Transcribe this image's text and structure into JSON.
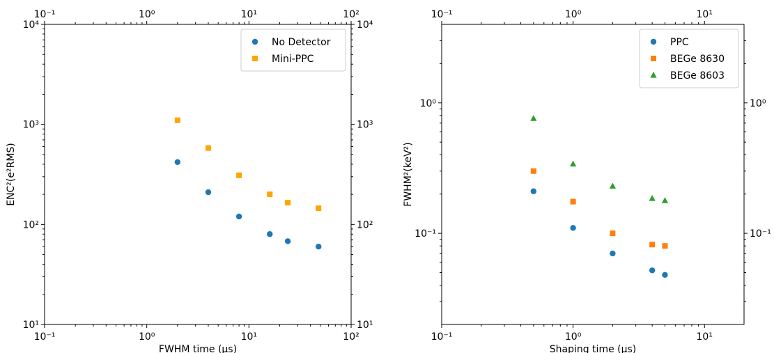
{
  "chart_data": [
    {
      "type": "scatter",
      "xlabel": "FWHM time (μs)",
      "ylabel": "ENC²(e²RMS)",
      "xscale": "log",
      "yscale": "log",
      "xlim": [
        0.1,
        100
      ],
      "ylim": [
        10,
        10000
      ],
      "grid": false,
      "legend_position": "top-right",
      "x_tick_labels": [
        "10⁻¹",
        "10⁰",
        "10¹",
        "10²"
      ],
      "y_tick_labels": [
        "10¹",
        "10²",
        "10³",
        "10⁴"
      ],
      "series": [
        {
          "name": "No Detector",
          "marker": "circle",
          "color": "#1f77b4",
          "x": [
            2,
            4,
            8,
            16,
            24,
            48
          ],
          "y": [
            420,
            210,
            120,
            80,
            68,
            60
          ]
        },
        {
          "name": "Mini-PPC",
          "marker": "square",
          "color": "#ffa500",
          "x": [
            2,
            4,
            8,
            16,
            24,
            48
          ],
          "y": [
            1100,
            580,
            310,
            200,
            165,
            145
          ]
        }
      ]
    },
    {
      "type": "scatter",
      "xlabel": "Shaping time (μs)",
      "ylabel": "FWHM²(keV²)",
      "xscale": "log",
      "yscale": "log",
      "xlim": [
        0.1,
        20
      ],
      "ylim": [
        0.02,
        4
      ],
      "grid": false,
      "legend_position": "top-right",
      "x_tick_labels": [
        "10⁻¹",
        "10⁰",
        "10¹"
      ],
      "y_tick_labels": [
        "10⁻¹",
        "10⁰"
      ],
      "series": [
        {
          "name": "PPC",
          "marker": "circle",
          "color": "#1f77b4",
          "x": [
            0.5,
            1,
            2,
            4,
            5
          ],
          "y": [
            0.21,
            0.11,
            0.07,
            0.052,
            0.048
          ]
        },
        {
          "name": "BEGe 8630",
          "marker": "square",
          "color": "#ff7f0e",
          "x": [
            0.5,
            1,
            2,
            4,
            5
          ],
          "y": [
            0.3,
            0.175,
            0.1,
            0.082,
            0.08
          ]
        },
        {
          "name": "BEGe 8603",
          "marker": "triangle",
          "color": "#2ca02c",
          "x": [
            0.5,
            1,
            2,
            4,
            5
          ],
          "y": [
            0.76,
            0.34,
            0.23,
            0.185,
            0.178
          ]
        }
      ]
    }
  ]
}
